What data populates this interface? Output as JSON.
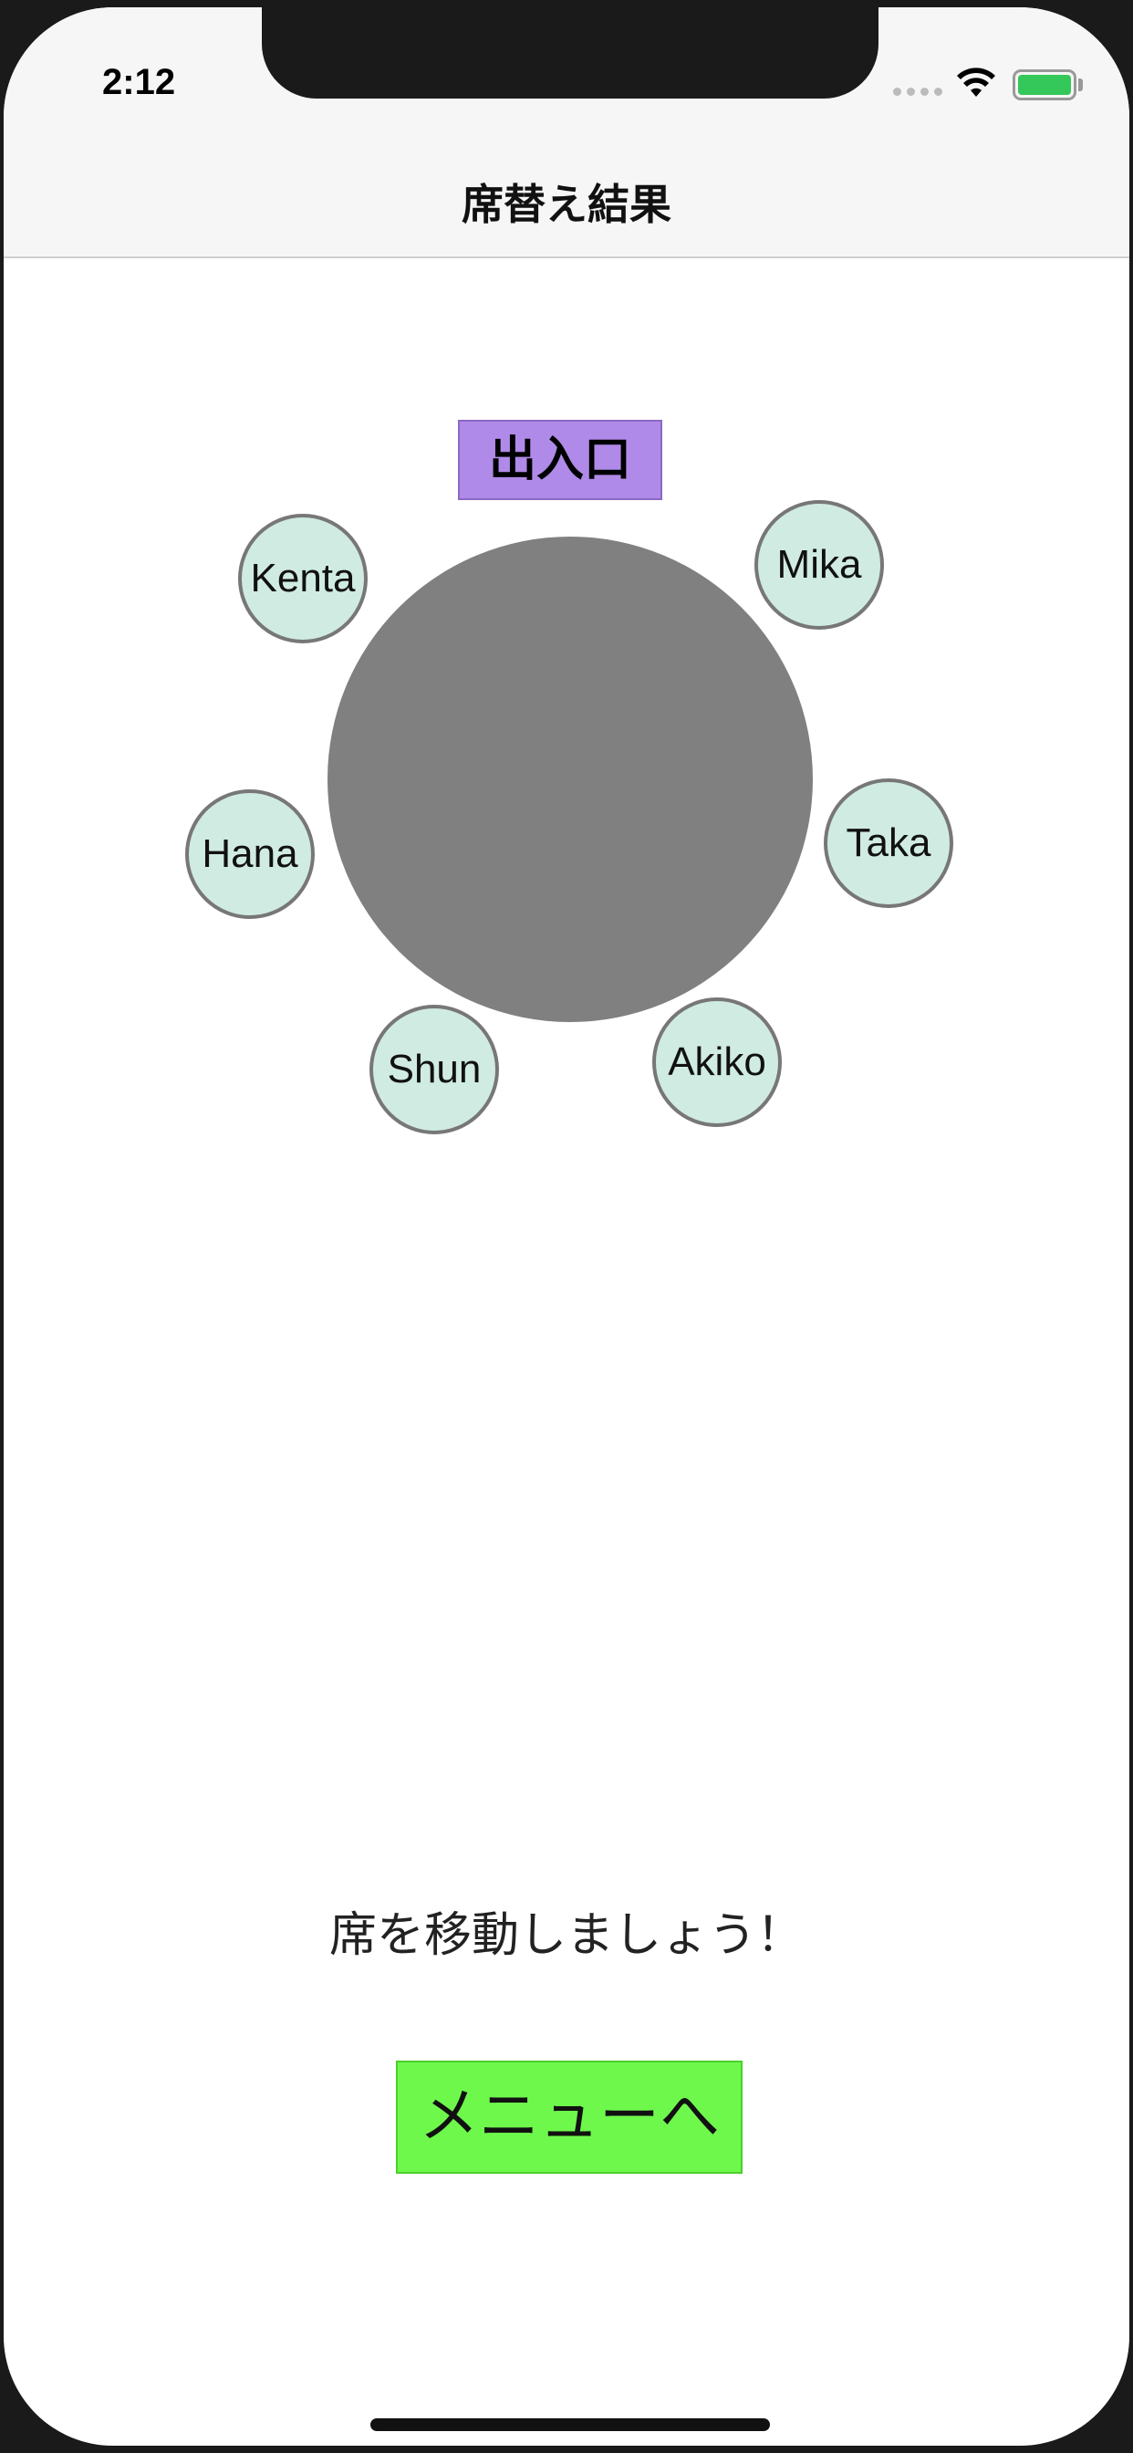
{
  "status": {
    "time": "2:12"
  },
  "navbar": {
    "title": "席替え結果"
  },
  "layout": {
    "entrance_label": "出入口",
    "seats": [
      {
        "id": "kenta",
        "name": "Kenta"
      },
      {
        "id": "mika",
        "name": "Mika"
      },
      {
        "id": "hana",
        "name": "Hana"
      },
      {
        "id": "taka",
        "name": "Taka"
      },
      {
        "id": "shun",
        "name": "Shun"
      },
      {
        "id": "akiko",
        "name": "Akiko"
      }
    ]
  },
  "message": "席を移動しましょう！",
  "menu_button_label": "メニューへ",
  "colors": {
    "entrance": "#b08ae8",
    "table": "#808080",
    "seat": "#d0ebe2",
    "menu_button": "#6ef84c",
    "battery": "#34c759"
  },
  "icons": [
    "wifi-icon",
    "battery-icon",
    "signal-icon"
  ]
}
